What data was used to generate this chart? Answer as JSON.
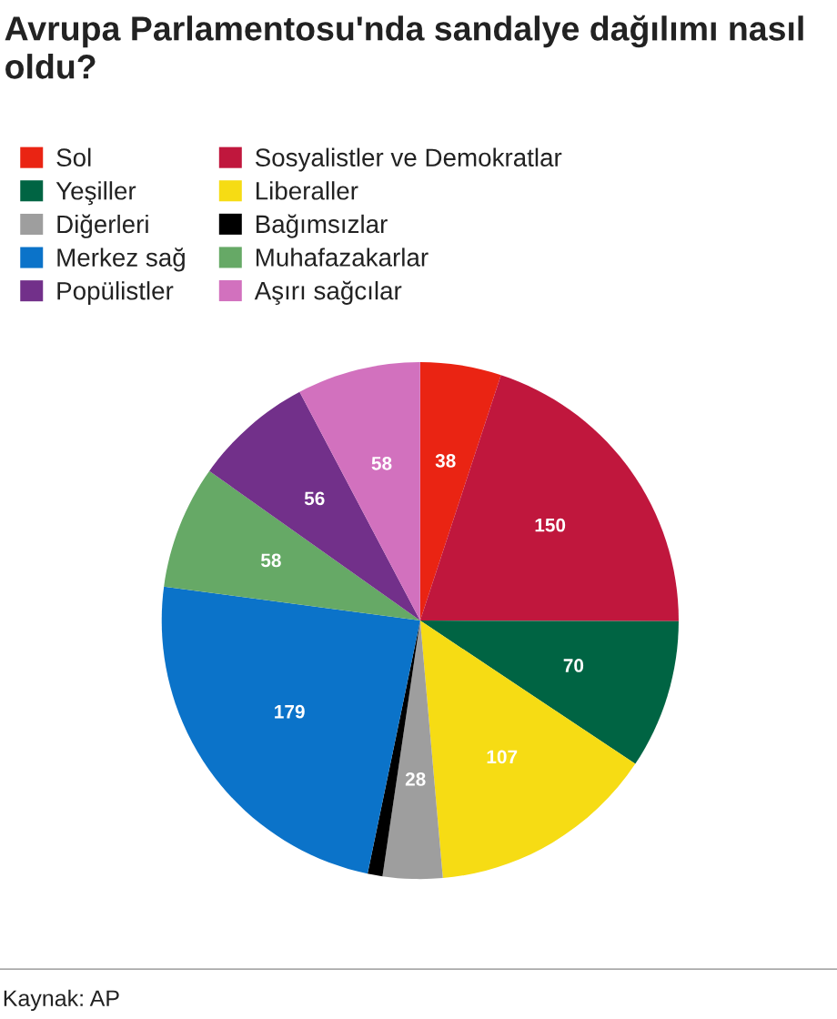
{
  "chart_data": {
    "type": "pie",
    "title": "Avrupa Parlamentosu'nda sandalye dağılımı nasıl oldu?",
    "categories": [
      "Sol",
      "Sosyalistler ve Demokratlar",
      "Yeşiller",
      "Liberaller",
      "Diğerleri",
      "Bağımsızlar",
      "Merkez sağ",
      "Muhafazakarlar",
      "Popülistler",
      "Aşırı sağcılar"
    ],
    "values": [
      38,
      150,
      70,
      107,
      28,
      7,
      179,
      58,
      56,
      58
    ],
    "value_labels": [
      "38",
      "150",
      "70",
      "107",
      "28",
      null,
      "179",
      "58",
      "56",
      "58"
    ],
    "colors": [
      "#ea2413",
      "#c0173d",
      "#006443",
      "#f6dc14",
      "#9e9e9e",
      "#000000",
      "#0b73c9",
      "#66a966",
      "#72308a",
      "#d271be"
    ],
    "legend": "top left",
    "annotations": [
      "Kaynak: AP"
    ]
  }
}
